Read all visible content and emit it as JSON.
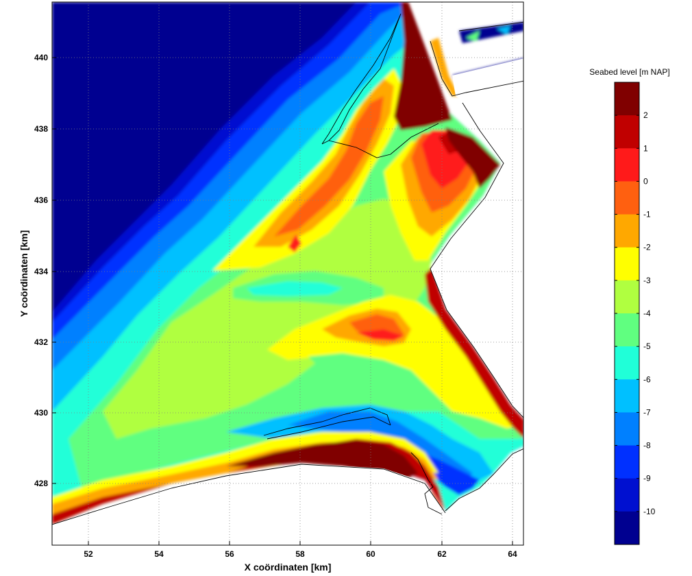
{
  "map": {
    "xlabel": "X coördinaten [km]",
    "ylabel": "Y coördinaten [km]",
    "x_ticks": [
      "52",
      "54",
      "56",
      "58",
      "60",
      "62",
      "64"
    ],
    "y_ticks": [
      "428",
      "430",
      "432",
      "434",
      "436",
      "438",
      "440"
    ]
  },
  "colorbar": {
    "title": "Seabed level [m NAP]",
    "labels": [
      "2",
      "1",
      "0",
      "-1",
      "-2",
      "-3",
      "-4",
      "-5",
      "-6",
      "-7",
      "-8",
      "-9",
      "-10"
    ],
    "colors": [
      "#800000",
      "#c00000",
      "#ff1a1a",
      "#ff6010",
      "#ffa800",
      "#ffff00",
      "#b0ff40",
      "#60ff80",
      "#20ffd8",
      "#00c0ff",
      "#0080ff",
      "#0030ff",
      "#0010d0",
      "#000090"
    ]
  },
  "palette": {
    "deep": "#000090",
    "land": "#ffffff"
  }
}
